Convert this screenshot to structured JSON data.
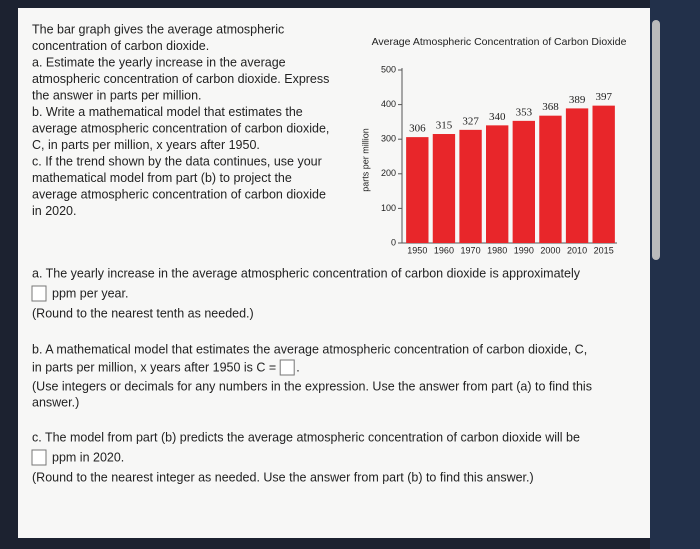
{
  "intro": [
    "The bar graph gives the average atmospheric",
    "concentration of carbon dioxide.",
    "a. Estimate the yearly increase in the average",
    "atmospheric concentration of carbon dioxide. Express",
    "the answer in parts per million.",
    "b. Write a mathematical model that estimates the",
    "average atmospheric concentration of carbon dioxide,",
    "C, in parts per million, x years after 1950.",
    "c. If the trend shown by the data continues, use your",
    "mathematical model from part (b) to project the",
    "average atmospheric concentration of carbon dioxide",
    "in 2020."
  ],
  "part_a": {
    "text": "a. The yearly increase in the average atmospheric concentration of carbon dioxide is approximately",
    "unit": "ppm per year.",
    "note": "(Round to the nearest tenth as needed.)"
  },
  "part_b": {
    "text": "b. A mathematical model that estimates the average atmospheric concentration of carbon dioxide, C,",
    "text2": "in parts per million, x years after 1950 is C =",
    "end": ".",
    "note": "(Use integers or decimals for any numbers in the expression. Use the answer from part (a) to find this",
    "note2": "answer.)"
  },
  "part_c": {
    "text": "c. The model from part (b) predicts the average atmospheric concentration of carbon dioxide will be",
    "unit": "ppm in 2020.",
    "note": "(Round to the nearest integer as needed. Use the answer from part (b) to find this answer.)"
  },
  "chart_data": {
    "type": "bar",
    "title": "Average Atmospheric Concentration of Carbon Dioxide",
    "y_label": "parts per million",
    "categories": [
      "1950",
      "1960",
      "1970",
      "1980",
      "1990",
      "2000",
      "2010",
      "2015"
    ],
    "values": [
      306,
      315,
      327,
      340,
      353,
      368,
      389,
      397
    ],
    "color": "#e8262a",
    "ylim": [
      0,
      500
    ],
    "yticks": [
      0,
      100,
      200,
      300,
      400,
      500
    ]
  }
}
